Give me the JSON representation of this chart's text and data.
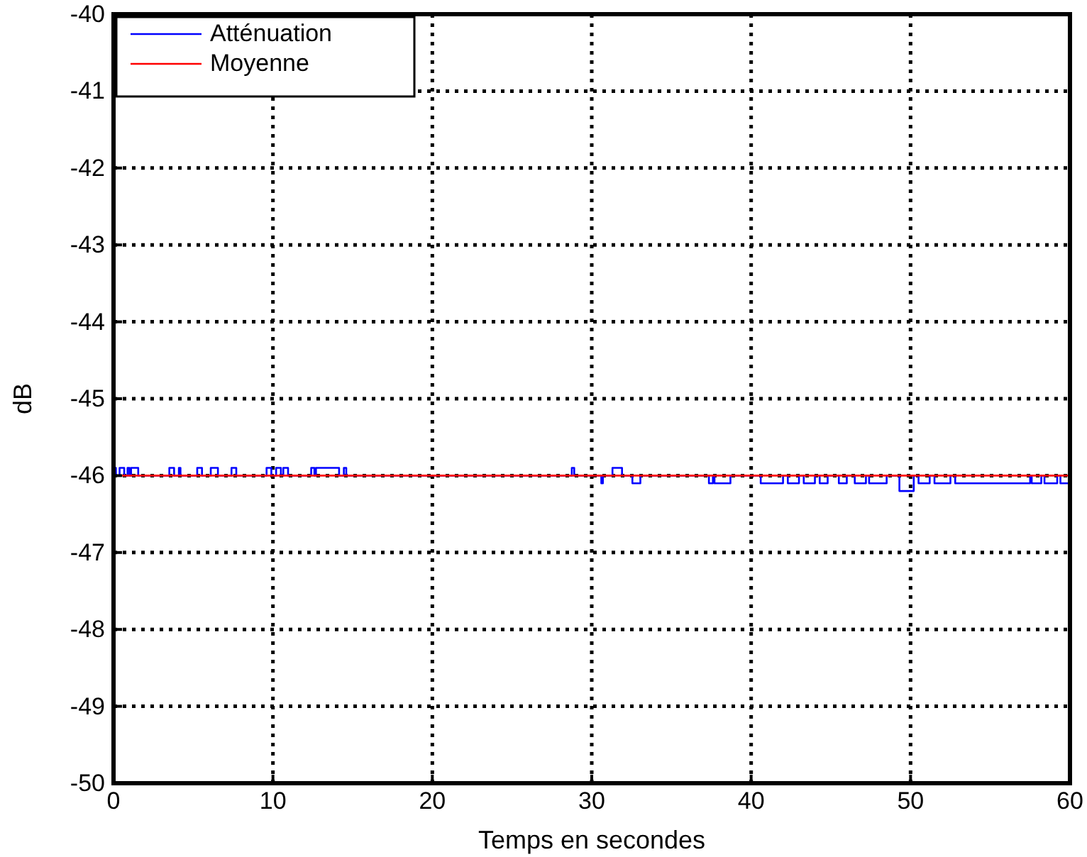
{
  "chart_data": {
    "type": "step",
    "xlabel": "Temps en secondes",
    "ylabel": "dB",
    "xlim": [
      0,
      60
    ],
    "xticks": [
      0,
      10,
      20,
      30,
      40,
      50,
      60
    ],
    "ylim": [
      -50,
      -40
    ],
    "yticks": [
      -50,
      -49,
      -48,
      -47,
      -46,
      -45,
      -44,
      -43,
      -42,
      -41,
      -40
    ],
    "grid": true,
    "legend": "top left",
    "line_style": "solid",
    "series": [
      {
        "name": "Atténuation",
        "color": "#0000ff",
        "x": [
          0,
          0.15,
          0.38,
          0.67,
          0.88,
          1.0,
          1.1,
          1.55,
          3.5,
          3.8,
          4.1,
          4.2,
          5.25,
          5.55,
          6.1,
          6.55,
          7.4,
          7.7,
          9.6,
          9.9,
          10.2,
          10.5,
          10.65,
          10.95,
          12.4,
          12.6,
          12.7,
          14.15,
          14.45,
          14.6,
          28.75,
          28.9,
          30.6,
          30.7,
          31.3,
          31.9,
          32.55,
          33.05,
          37.35,
          37.6,
          37.7,
          38.7,
          40.6,
          42.0,
          42.3,
          43.0,
          43.3,
          44.0,
          44.3,
          44.8,
          45.5,
          46.0,
          46.5,
          47.2,
          47.4,
          48.5,
          49.3,
          50.2,
          50.5,
          51.2,
          51.5,
          52.5,
          52.8,
          57.5,
          57.6,
          58.2,
          58.4,
          59.2,
          59.4,
          60
        ],
        "values": [
          -45.9,
          -46,
          -45.9,
          -46,
          -45.9,
          -46,
          -45.9,
          -46,
          -45.9,
          -46,
          -45.9,
          -46,
          -45.9,
          -46,
          -45.9,
          -46,
          -45.9,
          -46,
          -45.9,
          -46,
          -45.9,
          -46,
          -45.9,
          -46,
          -45.9,
          -46,
          -45.9,
          -46,
          -45.9,
          -46,
          -45.9,
          -46,
          -46.1,
          -46,
          -45.9,
          -46,
          -46.1,
          -46,
          -46.1,
          -46,
          -46.1,
          -46,
          -46.1,
          -46,
          -46.1,
          -46,
          -46.1,
          -46,
          -46.1,
          -46,
          -46.1,
          -46,
          -46.1,
          -46,
          -46.1,
          -46,
          -46.2,
          -46,
          -46.1,
          -46,
          -46.1,
          -46,
          -46.1,
          -46,
          -46.1,
          -46,
          -46.1,
          -46,
          -46.1,
          -46.1
        ]
      },
      {
        "name": "Moyenne",
        "color": "#ff0000",
        "type": "line",
        "x": [
          0,
          60
        ],
        "values": [
          -46,
          -46
        ]
      }
    ]
  }
}
